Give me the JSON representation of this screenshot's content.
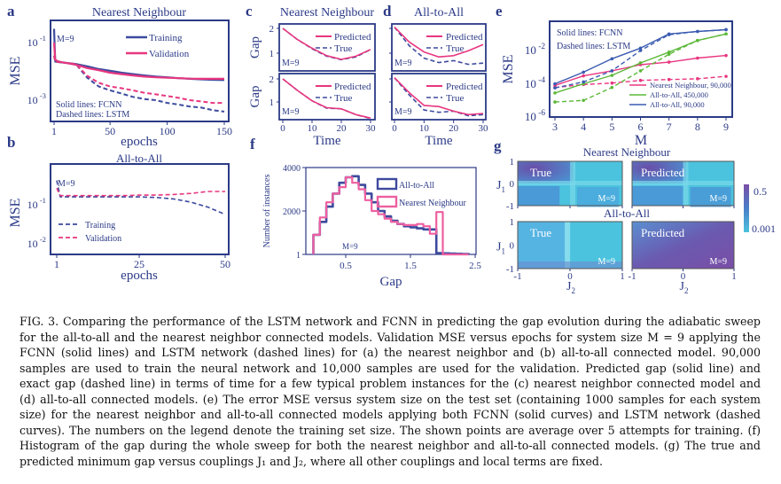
{
  "colors": {
    "axis": "#2b3a86",
    "training": "#3d4a9e",
    "validation": "#e8367f",
    "nn": "#e8367f",
    "aa450": "#5cb83a",
    "aa90": "#3a5bb0",
    "heat_low": "#4cc3de",
    "heat_high": "#7a4ea6"
  },
  "panel_labels": [
    "a",
    "b",
    "c",
    "d",
    "e",
    "f",
    "g"
  ],
  "chart_data": [
    {
      "id": "a",
      "type": "line",
      "title": "Nearest Neighbour",
      "xlabel": "epochs",
      "ylabel": "MSE",
      "yscale": "log",
      "xticks": [
        "1",
        "50",
        "100",
        "150"
      ],
      "yticks": [
        "10^-1",
        "10^-3"
      ],
      "annotation": "M=9",
      "notes": [
        "Solid lines: FCNN",
        "Dashed lines: LSTM"
      ],
      "legend": [
        "Training",
        "Validation"
      ],
      "x": [
        1,
        2,
        5,
        10,
        20,
        30,
        40,
        50,
        60,
        70,
        80,
        90,
        100,
        110,
        120,
        130,
        140,
        150
      ],
      "series": [
        {
          "name": "Training",
          "model": "FCNN",
          "style": "solid",
          "color": "#3d4a9e",
          "values": [
            0.3,
            0.022,
            0.021,
            0.02,
            0.018,
            0.015,
            0.012,
            0.0105,
            0.009,
            0.008,
            0.0072,
            0.0066,
            0.0062,
            0.0058,
            0.0055,
            0.0053,
            0.0051,
            0.005
          ]
        },
        {
          "name": "Validation",
          "model": "FCNN",
          "style": "solid",
          "color": "#e8367f",
          "values": [
            0.1,
            0.025,
            0.022,
            0.02,
            0.017,
            0.013,
            0.011,
            0.009,
            0.008,
            0.0072,
            0.0066,
            0.0062,
            0.006,
            0.0058,
            0.0056,
            0.0055,
            0.0055,
            0.0055
          ]
        },
        {
          "name": "Training",
          "model": "LSTM",
          "style": "dashed",
          "color": "#3d4a9e",
          "values": [
            0.035,
            0.022,
            0.021,
            0.02,
            0.018,
            0.006,
            0.003,
            0.0022,
            0.0017,
            0.0013,
            0.0011,
            0.001,
            0.0008,
            0.0007,
            0.0006,
            0.00055,
            0.00045,
            0.0004
          ]
        },
        {
          "name": "Validation",
          "model": "LSTM",
          "style": "dashed",
          "color": "#e8367f",
          "values": [
            0.035,
            0.022,
            0.021,
            0.02,
            0.018,
            0.007,
            0.004,
            0.003,
            0.0026,
            0.0022,
            0.0018,
            0.0016,
            0.0014,
            0.0012,
            0.001,
            0.0009,
            0.0008,
            0.0008
          ]
        }
      ]
    },
    {
      "id": "b",
      "type": "line",
      "title": "All-to-All",
      "xlabel": "epochs",
      "ylabel": "MSE",
      "yscale": "log",
      "xticks": [
        "1",
        "25",
        "50"
      ],
      "yticks": [
        "10^-1",
        "10^-2"
      ],
      "annotation": "M=9",
      "legend": [
        "Training",
        "Validation"
      ],
      "x": [
        1,
        2,
        5,
        10,
        15,
        20,
        25,
        30,
        35,
        40,
        45,
        50
      ],
      "series": [
        {
          "name": "Training",
          "style": "dashed",
          "color": "#3d4a9e",
          "values": [
            0.35,
            0.13,
            0.13,
            0.13,
            0.13,
            0.13,
            0.13,
            0.125,
            0.115,
            0.095,
            0.07,
            0.045
          ]
        },
        {
          "name": "Validation",
          "style": "dashed",
          "color": "#e8367f",
          "values": [
            0.22,
            0.14,
            0.14,
            0.14,
            0.14,
            0.14,
            0.145,
            0.145,
            0.15,
            0.16,
            0.18,
            0.18
          ]
        }
      ]
    },
    {
      "id": "c",
      "type": "line",
      "title": "Nearest Neighbour",
      "xlabel": "Time",
      "ylabel": "Gap",
      "xticks": [
        "0",
        "10",
        "20",
        "30"
      ],
      "yticks": [
        "2",
        "1"
      ],
      "annotation": "M=9",
      "legend": [
        "Predicted",
        "True"
      ],
      "x": [
        0,
        5,
        10,
        15,
        20,
        25,
        30
      ],
      "instances": [
        {
          "predicted": [
            2.0,
            1.55,
            1.2,
            0.9,
            0.75,
            0.88,
            1.15
          ],
          "true": [
            2.0,
            1.55,
            1.18,
            0.88,
            0.74,
            0.85,
            1.15
          ]
        },
        {
          "predicted": [
            2.0,
            1.5,
            1.05,
            0.75,
            0.7,
            0.45,
            0.3
          ],
          "true": [
            2.0,
            1.5,
            1.05,
            0.73,
            0.7,
            0.45,
            0.28
          ]
        }
      ]
    },
    {
      "id": "d",
      "type": "line",
      "title": "All-to-All",
      "xlabel": "Time",
      "xticks": [
        "0",
        "10",
        "20",
        "30"
      ],
      "annotation": "M=9",
      "legend": [
        "Predicted",
        "True"
      ],
      "x": [
        0,
        5,
        10,
        15,
        20,
        25,
        30
      ],
      "instances": [
        {
          "predicted": [
            2.05,
            1.45,
            1.05,
            0.85,
            0.9,
            1.1,
            1.35
          ],
          "true": [
            2.05,
            1.3,
            0.8,
            0.62,
            0.7,
            0.55,
            0.6
          ]
        },
        {
          "predicted": [
            2.05,
            1.4,
            0.85,
            0.8,
            0.6,
            0.45,
            0.5
          ],
          "true": [
            2.05,
            1.3,
            0.65,
            0.55,
            0.6,
            0.4,
            0.45
          ]
        }
      ]
    },
    {
      "id": "e",
      "type": "line",
      "xlabel": "M",
      "ylabel": "MSE",
      "yscale": "log",
      "xticks": [
        "3",
        "4",
        "5",
        "6",
        "7",
        "8",
        "9"
      ],
      "yticks": [
        "10^-2",
        "10^-4",
        "10^-6"
      ],
      "notes": [
        "Solid lines: FCNN",
        "Dashed lines: LSTM"
      ],
      "x": [
        3,
        4,
        5,
        6,
        7,
        8,
        9
      ],
      "series": [
        {
          "name": "Nearest Neighbour, 90,000",
          "color": "#e8367f",
          "solid": [
            8e-05,
            0.0003,
            0.0006,
            0.0014,
            0.002,
            0.0035,
            0.005
          ],
          "dashed": [
            6e-05,
            9e-05,
            0.00011,
            0.00016,
            0.00018,
            0.0002,
            0.00028
          ]
        },
        {
          "name": "All-to-All, 450,000",
          "color": "#5cb83a",
          "solid": [
            2.8e-05,
            0.0001,
            0.00032,
            0.0018,
            0.008,
            0.04,
            0.1
          ],
          "dashed": [
            8e-06,
            1e-05,
            6e-05,
            0.0006,
            0.006,
            0.04,
            0.1
          ]
        },
        {
          "name": "All-to-All, 90,000",
          "color": "#3a5bb0",
          "solid": [
            0.0001,
            0.0005,
            0.0032,
            0.014,
            0.1,
            0.14,
            0.18
          ],
          "dashed": [
            5.6e-05,
            0.00013,
            0.0006,
            0.01,
            0.09,
            0.14,
            0.18
          ]
        }
      ]
    },
    {
      "id": "f",
      "type": "bar",
      "xlabel": "Gap",
      "ylabel": "Number of instances",
      "xticks": [
        "0.5",
        "1.5",
        "2.5"
      ],
      "yticks": [
        "4000",
        "2000",
        "1"
      ],
      "annotation": "M=9",
      "bin_width": 0.1,
      "bins_start": [
        0,
        0.1,
        0.2,
        0.3,
        0.4,
        0.5,
        0.6,
        0.7,
        0.8,
        0.9,
        1.0,
        1.1,
        1.2,
        1.3,
        1.4,
        1.5,
        1.6,
        1.7,
        1.8,
        1.9,
        2.0,
        2.1,
        2.2,
        2.3
      ],
      "series": [
        {
          "name": "All-to-All",
          "color": "#3d4a9e",
          "values": [
            900,
            1500,
            2200,
            2800,
            3300,
            3550,
            3600,
            3200,
            2800,
            2400,
            2000,
            1750,
            1550,
            1400,
            1300,
            1250,
            1200,
            1150,
            1150,
            60,
            50,
            40,
            30,
            20
          ]
        },
        {
          "name": "Nearest Neighbour",
          "color": "#ee5fa0",
          "values": [
            900,
            1700,
            2400,
            2800,
            3100,
            3550,
            3300,
            3000,
            2500,
            2000,
            1850,
            1650,
            1500,
            1400,
            1350,
            1350,
            1400,
            1300,
            950,
            1950,
            0,
            0,
            0,
            0
          ]
        }
      ]
    },
    {
      "id": "g",
      "type": "heatmap",
      "titles": [
        "Nearest Neighbour",
        "All-to-All"
      ],
      "panel_labels": [
        "True",
        "Predicted"
      ],
      "annotation": "M=9",
      "xlabel": "J2",
      "ylabel": "J1",
      "xticks": [
        "-1",
        "0",
        "1"
      ],
      "yticks": [
        "1",
        "0",
        "-1"
      ],
      "colorbar": {
        "ticks": [
          "0.5",
          "0.001"
        ]
      }
    }
  ],
  "caption": [
    "FIG. 3. Comparing the performance of the LSTM network and FCNN in predicting the gap evolution during the adiabatic sweep",
    "for the all-to-all and the nearest neighbor connected models. Validation MSE versus epochs for system size M = 9 applying the",
    "FCNN (solid lines) and LSTM network (dashed lines) for (a) the nearest neighbor and (b) all-to-all connected model. 90,000",
    "samples are used to train the neural network and 10,000 samples are used for the validation. Predicted gap (solid line) and",
    "exact gap (dashed line) in terms of time for a few typical problem instances for the (c) nearest neighbor connected model and",
    "(d) all-to-all connected models. (e) The error MSE versus system size on the test set (containing 1000 samples for each system",
    "size) for the nearest neighbor and all-to-all connected models applying both FCNN (solid curves) and LSTM network (dashed",
    "curves). The numbers on the legend denote the training set size. The shown points are average over 5 attempts for training. (f)",
    "Histogram of the gap during the whole sweep for both the nearest neighbor and all-to-all connected models. (g) The true and",
    "predicted minimum gap versus couplings J₁ and J₂, where all other couplings and local terms are fixed."
  ]
}
